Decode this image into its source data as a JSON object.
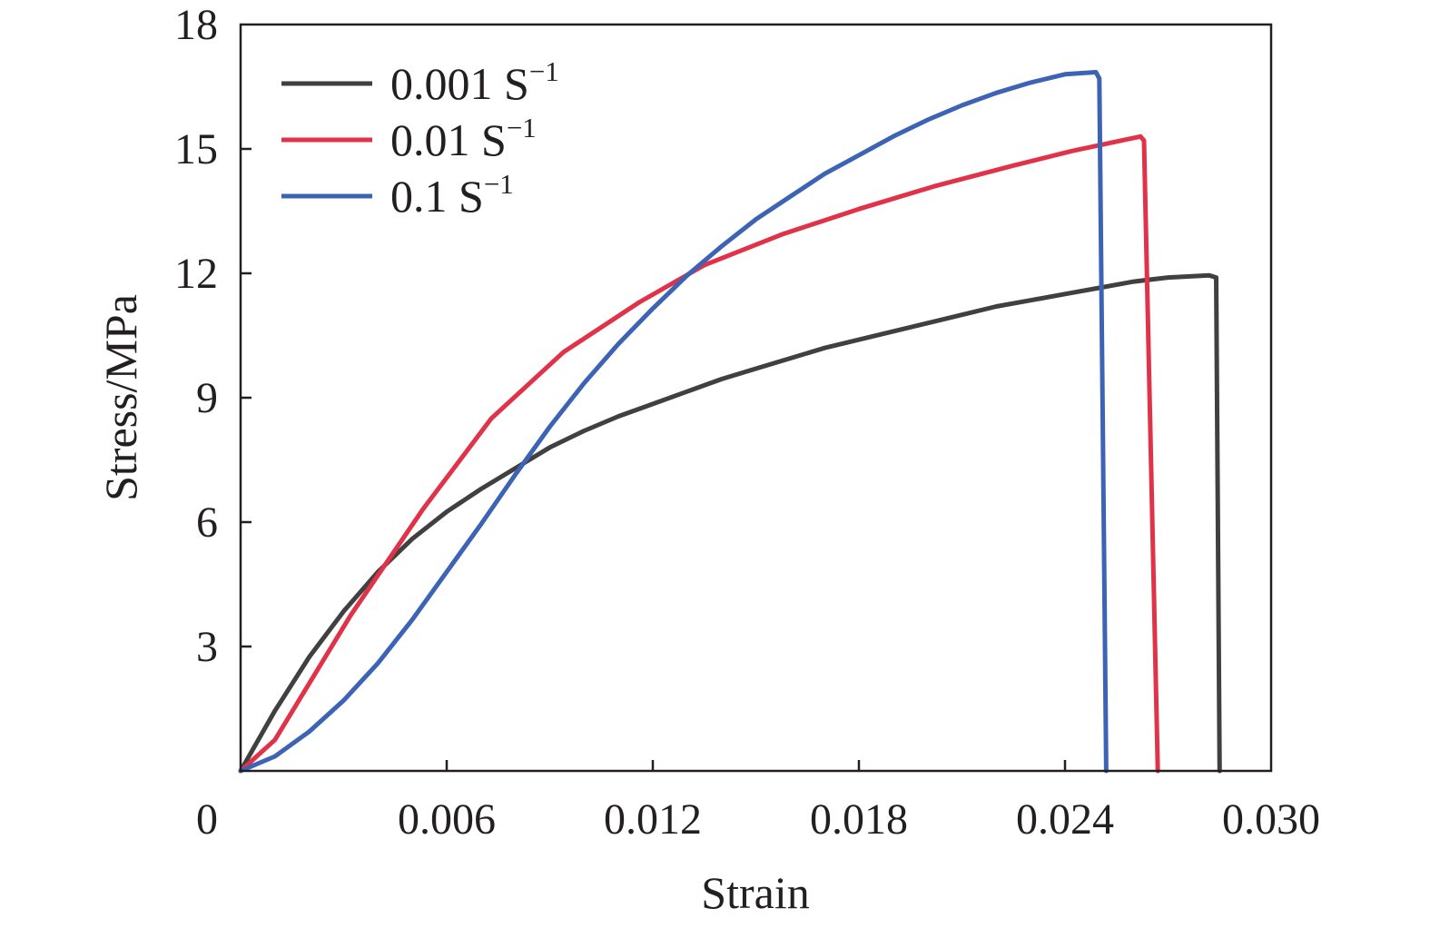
{
  "chart_data": {
    "type": "line",
    "title": "",
    "xlabel": "Strain",
    "ylabel": "Stress/MPa",
    "xlim": [
      0,
      0.03
    ],
    "ylim": [
      0,
      18
    ],
    "x_ticks": [
      {
        "value": 0,
        "label": "0"
      },
      {
        "value": 0.006,
        "label": "0.006"
      },
      {
        "value": 0.012,
        "label": "0.012"
      },
      {
        "value": 0.018,
        "label": "0.018"
      },
      {
        "value": 0.024,
        "label": "0.024"
      },
      {
        "value": 0.03,
        "label": "0.030"
      }
    ],
    "y_ticks": [
      {
        "value": 3,
        "label": "3"
      },
      {
        "value": 6,
        "label": "6"
      },
      {
        "value": 9,
        "label": "9"
      },
      {
        "value": 12,
        "label": "12"
      },
      {
        "value": 15,
        "label": "15"
      },
      {
        "value": 18,
        "label": "18"
      }
    ],
    "grid": false,
    "legend_position": "top-left",
    "series": [
      {
        "name": "0.001 S",
        "name_superscript": "−1",
        "color": "#404041",
        "x": [
          0,
          0.001,
          0.002,
          0.003,
          0.004,
          0.005,
          0.006,
          0.007,
          0.008,
          0.009,
          0.01,
          0.011,
          0.012,
          0.013,
          0.014,
          0.015,
          0.016,
          0.017,
          0.018,
          0.019,
          0.02,
          0.021,
          0.022,
          0.023,
          0.024,
          0.025,
          0.026,
          0.027,
          0.0282,
          0.0284,
          0.0285
        ],
        "y": [
          0,
          1.45,
          2.75,
          3.85,
          4.8,
          5.6,
          6.25,
          6.8,
          7.3,
          7.8,
          8.2,
          8.55,
          8.85,
          9.15,
          9.45,
          9.7,
          9.95,
          10.2,
          10.4,
          10.6,
          10.8,
          11.0,
          11.2,
          11.35,
          11.5,
          11.65,
          11.8,
          11.9,
          11.95,
          11.9,
          0
        ]
      },
      {
        "name": "0.01 S",
        "name_superscript": "−1",
        "color": "#e03248",
        "x": [
          0,
          0.001,
          0.0032,
          0.0053,
          0.0073,
          0.0094,
          0.0116,
          0.0135,
          0.0158,
          0.018,
          0.0202,
          0.0225,
          0.0242,
          0.0262,
          0.0263,
          0.0267
        ],
        "y": [
          0,
          0.75,
          3.75,
          6.3,
          8.5,
          10.1,
          11.3,
          12.2,
          12.95,
          13.55,
          14.1,
          14.6,
          14.95,
          15.3,
          15.2,
          0
        ]
      },
      {
        "name": "0.1 S",
        "name_superscript": "−1",
        "color": "#3d64b4",
        "x": [
          0,
          0.001,
          0.002,
          0.003,
          0.004,
          0.005,
          0.006,
          0.007,
          0.008,
          0.009,
          0.01,
          0.011,
          0.012,
          0.013,
          0.014,
          0.015,
          0.016,
          0.017,
          0.018,
          0.019,
          0.02,
          0.021,
          0.022,
          0.023,
          0.024,
          0.0249,
          0.025,
          0.0252
        ],
        "y": [
          0,
          0.35,
          0.95,
          1.7,
          2.6,
          3.65,
          4.8,
          5.95,
          7.15,
          8.3,
          9.35,
          10.3,
          11.15,
          11.95,
          12.65,
          13.3,
          13.85,
          14.4,
          14.85,
          15.3,
          15.7,
          16.05,
          16.35,
          16.6,
          16.8,
          16.85,
          16.7,
          0
        ]
      }
    ]
  }
}
